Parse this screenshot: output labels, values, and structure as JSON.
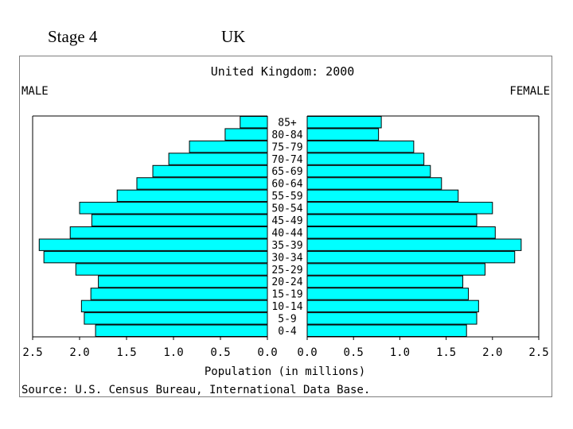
{
  "slide": {
    "stage_label": "Stage 4",
    "country_label": "UK"
  },
  "chart_data": {
    "type": "bar",
    "subtype": "population-pyramid",
    "title": "United Kingdom: 2000",
    "left_label": "MALE",
    "right_label": "FEMALE",
    "xlabel": "Population (in millions)",
    "source": "Source: U.S. Census Bureau, International Data Base.",
    "xlim": [
      0,
      2.5
    ],
    "ticks": [
      "2.5",
      "2.0",
      "1.5",
      "1.0",
      "0.5",
      "0.0",
      "0.0",
      "0.5",
      "1.0",
      "1.5",
      "2.0",
      "2.5"
    ],
    "categories": [
      "85+",
      "80-84",
      "75-79",
      "70-74",
      "65-69",
      "60-64",
      "55-59",
      "50-54",
      "45-49",
      "40-44",
      "35-39",
      "30-34",
      "25-29",
      "20-24",
      "15-19",
      "10-14",
      "5-9",
      "0-4"
    ],
    "series": [
      {
        "name": "MALE",
        "values": [
          0.29,
          0.45,
          0.83,
          1.05,
          1.22,
          1.39,
          1.6,
          2.0,
          1.87,
          2.1,
          2.43,
          2.38,
          2.04,
          1.8,
          1.88,
          1.98,
          1.95,
          1.83
        ]
      },
      {
        "name": "FEMALE",
        "values": [
          0.8,
          0.77,
          1.15,
          1.26,
          1.33,
          1.45,
          1.63,
          2.0,
          1.83,
          2.03,
          2.31,
          2.24,
          1.92,
          1.68,
          1.74,
          1.85,
          1.83,
          1.72
        ]
      }
    ],
    "colors": {
      "bar_fill": "#00ffff",
      "bar_stroke": "#000000",
      "text": "#000000"
    },
    "grid": false,
    "legend": "none"
  }
}
